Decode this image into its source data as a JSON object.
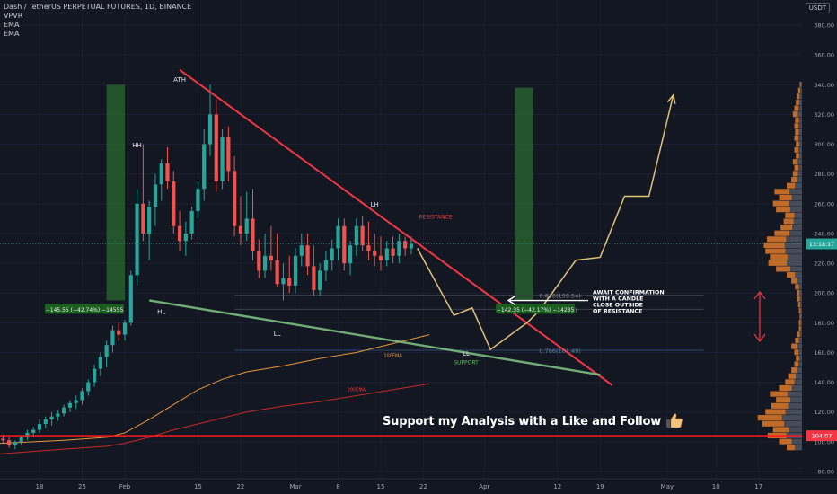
{
  "header": {
    "symbol_line": "Dash / TetherUS PERPETUAL FUTURES, 1D, BINANCE",
    "indicators": [
      "VPVR",
      "EMA",
      "EMA"
    ],
    "currency": "USDT"
  },
  "promo_text": "Support my Analysis with a Like and Follow",
  "colors": {
    "background": "#131722",
    "up_candle": "#26a69a",
    "down_candle": "#ef5350",
    "resistance": "#f23645",
    "support": "#81c784",
    "projection": "#e0c27a",
    "ema100": "#e8963c",
    "ema200": "#c62828",
    "horizontal_level": "#ff1a1a",
    "green_box": "#2e7d32"
  },
  "chart_data": {
    "type": "candlestick",
    "xlabel": "",
    "ylabel": "",
    "ylim": [
      80,
      390
    ],
    "y_ticks": [
      80,
      100,
      120,
      140,
      160,
      180,
      200,
      220,
      240,
      260,
      280,
      300,
      320,
      340,
      360,
      380
    ],
    "y_tick_labels": [
      "80.00",
      "100.00",
      "120.00",
      "140.00",
      "160.00",
      "180.00",
      "200.00",
      "220.00",
      "240.00",
      "260.00",
      "280.00",
      "300.00",
      "320.00",
      "340.00",
      "360.00",
      "380.00"
    ],
    "x_range_days": [
      -32,
      77
    ],
    "x_ticks": [
      {
        "day": -14,
        "label": "18"
      },
      {
        "day": -7,
        "label": "25"
      },
      {
        "day": 0,
        "label": "Feb"
      },
      {
        "day": 12,
        "label": "15"
      },
      {
        "day": 19,
        "label": "22"
      },
      {
        "day": 28,
        "label": "Mar"
      },
      {
        "day": 35,
        "label": "8"
      },
      {
        "day": 42,
        "label": "15"
      },
      {
        "day": 49,
        "label": "22"
      },
      {
        "day": 59,
        "label": "Apr"
      },
      {
        "day": 71,
        "label": "12"
      },
      {
        "day": 78,
        "label": "19"
      },
      {
        "day": 89,
        "label": "May"
      },
      {
        "day": 97,
        "label": "10"
      },
      {
        "day": 104,
        "label": "17"
      }
    ],
    "current_price": {
      "value": 233.0,
      "label": "13:18:17"
    },
    "level_104": {
      "value": 104.07,
      "label": "104.07"
    },
    "fib_levels": [
      {
        "value": 198.54,
        "label": "0.618(198.54)"
      },
      {
        "value": 189.02,
        "label": "0.66(189.02)"
      },
      {
        "value": 161.49,
        "label": "0.786(161.49)"
      }
    ],
    "candles": [
      [
        -32,
        122,
        124,
        119,
        121
      ],
      [
        -31,
        121,
        123,
        117,
        118
      ],
      [
        -30,
        118,
        122,
        116,
        120
      ],
      [
        -29,
        120,
        121,
        112,
        113
      ],
      [
        -28,
        113,
        116,
        110,
        114
      ],
      [
        -27,
        114,
        118,
        112,
        117
      ],
      [
        -26,
        117,
        119,
        106,
        108
      ],
      [
        -25,
        108,
        111,
        94,
        96
      ],
      [
        -24,
        96,
        103,
        94,
        101
      ],
      [
        -23,
        101,
        104,
        97,
        99
      ],
      [
        -22,
        99,
        102,
        95,
        100
      ],
      [
        -21,
        100,
        104,
        98,
        102
      ],
      [
        -20,
        102,
        105,
        99,
        101
      ],
      [
        -19,
        101,
        103,
        96,
        98
      ],
      [
        -18,
        98,
        101,
        95,
        100
      ],
      [
        -17,
        100,
        104,
        98,
        103
      ],
      [
        -16,
        103,
        108,
        101,
        106
      ],
      [
        -15,
        106,
        110,
        103,
        108
      ],
      [
        -14,
        108,
        115,
        106,
        112
      ],
      [
        -13,
        112,
        117,
        109,
        115
      ],
      [
        -12,
        115,
        120,
        111,
        117
      ],
      [
        -11,
        117,
        121,
        114,
        119
      ],
      [
        -10,
        119,
        125,
        117,
        123
      ],
      [
        -9,
        123,
        128,
        120,
        126
      ],
      [
        -8,
        126,
        131,
        122,
        128
      ],
      [
        -7,
        128,
        136,
        125,
        134
      ],
      [
        -6,
        134,
        142,
        131,
        140
      ],
      [
        -5,
        140,
        152,
        137,
        149
      ],
      [
        -4,
        149,
        160,
        144,
        157
      ],
      [
        -3,
        157,
        168,
        150,
        165
      ],
      [
        -2,
        165,
        178,
        160,
        175
      ],
      [
        -1,
        175,
        180,
        168,
        172
      ],
      [
        0,
        172,
        182,
        168,
        180
      ],
      [
        1,
        180,
        215,
        178,
        212
      ],
      [
        2,
        212,
        270,
        205,
        260
      ],
      [
        3,
        260,
        300,
        235,
        240
      ],
      [
        4,
        240,
        262,
        222,
        258
      ],
      [
        5,
        258,
        280,
        245,
        273
      ],
      [
        6,
        273,
        290,
        262,
        287
      ],
      [
        7,
        287,
        298,
        270,
        275
      ],
      [
        8,
        275,
        282,
        240,
        245
      ],
      [
        9,
        245,
        255,
        228,
        235
      ],
      [
        10,
        235,
        248,
        225,
        240
      ],
      [
        11,
        240,
        258,
        236,
        255
      ],
      [
        12,
        255,
        275,
        250,
        270
      ],
      [
        13,
        270,
        310,
        262,
        300
      ],
      [
        14,
        300,
        340,
        292,
        320
      ],
      [
        15,
        320,
        330,
        268,
        275
      ],
      [
        16,
        275,
        310,
        270,
        305
      ],
      [
        17,
        305,
        312,
        275,
        282
      ],
      [
        18,
        282,
        292,
        238,
        245
      ],
      [
        19,
        245,
        265,
        232,
        240
      ],
      [
        20,
        240,
        268,
        235,
        250
      ],
      [
        21,
        250,
        270,
        222,
        228
      ],
      [
        22,
        228,
        236,
        210,
        215
      ],
      [
        23,
        215,
        240,
        210,
        225
      ],
      [
        24,
        225,
        245,
        215,
        222
      ],
      [
        25,
        222,
        240,
        204,
        206
      ],
      [
        26,
        206,
        220,
        195,
        210
      ],
      [
        27,
        210,
        225,
        200,
        205
      ],
      [
        28,
        205,
        230,
        200,
        225
      ],
      [
        29,
        225,
        240,
        218,
        232
      ],
      [
        30,
        232,
        240,
        212,
        218
      ],
      [
        31,
        218,
        232,
        198,
        202
      ],
      [
        32,
        202,
        220,
        198,
        215
      ],
      [
        33,
        215,
        228,
        208,
        222
      ],
      [
        34,
        222,
        236,
        215,
        230
      ],
      [
        35,
        230,
        250,
        222,
        245
      ],
      [
        36,
        245,
        250,
        215,
        220
      ],
      [
        37,
        220,
        235,
        212,
        232
      ],
      [
        38,
        232,
        250,
        225,
        245
      ],
      [
        39,
        245,
        252,
        228,
        232
      ],
      [
        40,
        232,
        248,
        222,
        228
      ],
      [
        41,
        228,
        240,
        218,
        225
      ],
      [
        42,
        225,
        238,
        215,
        222
      ],
      [
        43,
        222,
        235,
        218,
        230
      ],
      [
        44,
        230,
        238,
        220,
        225
      ],
      [
        45,
        225,
        240,
        220,
        235
      ],
      [
        46,
        235,
        238,
        225,
        230
      ],
      [
        47,
        230,
        238,
        226,
        233
      ]
    ],
    "vpvr": [
      [
        96,
        20
      ],
      [
        100,
        30
      ],
      [
        104,
        45
      ],
      [
        108,
        38
      ],
      [
        112,
        52
      ],
      [
        116,
        58
      ],
      [
        120,
        48
      ],
      [
        124,
        40
      ],
      [
        128,
        34
      ],
      [
        132,
        42
      ],
      [
        136,
        30
      ],
      [
        140,
        22
      ],
      [
        144,
        18
      ],
      [
        148,
        14
      ],
      [
        152,
        10
      ],
      [
        156,
        8
      ],
      [
        160,
        10
      ],
      [
        164,
        14
      ],
      [
        168,
        9
      ],
      [
        172,
        6
      ],
      [
        176,
        4
      ],
      [
        180,
        4
      ],
      [
        184,
        3
      ],
      [
        188,
        4
      ],
      [
        192,
        5
      ],
      [
        196,
        6
      ],
      [
        200,
        7
      ],
      [
        204,
        9
      ],
      [
        208,
        14
      ],
      [
        212,
        20
      ],
      [
        216,
        34
      ],
      [
        220,
        44
      ],
      [
        224,
        42
      ],
      [
        228,
        48
      ],
      [
        232,
        50
      ],
      [
        236,
        46
      ],
      [
        240,
        36
      ],
      [
        244,
        28
      ],
      [
        248,
        24
      ],
      [
        252,
        22
      ],
      [
        256,
        34
      ],
      [
        260,
        38
      ],
      [
        264,
        30
      ],
      [
        268,
        36
      ],
      [
        272,
        20
      ],
      [
        276,
        14
      ],
      [
        280,
        12
      ],
      [
        284,
        10
      ],
      [
        288,
        12
      ],
      [
        292,
        8
      ],
      [
        296,
        10
      ],
      [
        300,
        8
      ],
      [
        304,
        10
      ],
      [
        308,
        9
      ],
      [
        312,
        10
      ],
      [
        316,
        9
      ],
      [
        320,
        12
      ],
      [
        324,
        10
      ],
      [
        328,
        8
      ],
      [
        332,
        7
      ],
      [
        336,
        5
      ],
      [
        340,
        3
      ]
    ],
    "ema100": [
      [
        -32,
        98
      ],
      [
        -20,
        99
      ],
      [
        -10,
        101
      ],
      [
        -3,
        103
      ],
      [
        0,
        106
      ],
      [
        4,
        115
      ],
      [
        8,
        125
      ],
      [
        12,
        135
      ],
      [
        16,
        142
      ],
      [
        20,
        147
      ],
      [
        26,
        151
      ],
      [
        32,
        156
      ],
      [
        38,
        160
      ],
      [
        44,
        166
      ],
      [
        50,
        172
      ]
    ],
    "ema200": [
      [
        -32,
        90
      ],
      [
        -20,
        92
      ],
      [
        -10,
        95
      ],
      [
        -3,
        97
      ],
      [
        0,
        99
      ],
      [
        4,
        103
      ],
      [
        8,
        108
      ],
      [
        12,
        112
      ],
      [
        16,
        116
      ],
      [
        20,
        120
      ],
      [
        26,
        124
      ],
      [
        32,
        127
      ],
      [
        38,
        131
      ],
      [
        44,
        135
      ],
      [
        50,
        139
      ]
    ],
    "resistance_line": [
      [
        9,
        350
      ],
      [
        80,
        138
      ]
    ],
    "support_line": [
      [
        4,
        195
      ],
      [
        78,
        145
      ]
    ],
    "projection_path": [
      [
        48,
        230
      ],
      [
        54,
        185
      ],
      [
        57,
        190
      ],
      [
        60,
        162
      ],
      [
        66,
        180
      ],
      [
        68,
        188
      ],
      [
        71,
        205
      ],
      [
        74,
        222
      ],
      [
        78,
        224
      ],
      [
        82,
        265
      ],
      [
        86,
        265
      ],
      [
        90,
        333
      ]
    ],
    "green_boxes": [
      {
        "day_from": -3,
        "day_to": 0,
        "top": 340,
        "bottom": 195
      },
      {
        "day_from": 64,
        "day_to": 67,
        "top": 338,
        "bottom": 195
      }
    ],
    "measure_labels": [
      {
        "text": "−145.55 (−42.74%) −14555",
        "day": -14,
        "value": 189
      },
      {
        "text": "−142.35 (−42.17%) −14235",
        "day": 60,
        "value": 189
      }
    ],
    "annotations": [
      {
        "text": "ATH",
        "day": 9,
        "value": 342
      },
      {
        "text": "HH",
        "day": 2,
        "value": 298
      },
      {
        "text": "HL",
        "day": 6,
        "value": 186
      },
      {
        "text": "LL",
        "day": 25,
        "value": 171
      },
      {
        "text": "LH",
        "day": 41,
        "value": 258
      },
      {
        "text": "LL",
        "day": 56,
        "value": 158
      },
      {
        "text": "RESISTANCE",
        "day": 51,
        "value": 250
      },
      {
        "text": "SUPPORT",
        "day": 56,
        "value": 152
      },
      {
        "text": "100EMA",
        "day": 44,
        "value": 157
      },
      {
        "text": "200EMA",
        "day": 38,
        "value": 134
      }
    ],
    "callout": {
      "lines": [
        "AWAIT CONFIRMATION",
        "WITH A CANDLE",
        "CLOSE OUTSIDE",
        "OF RESISTANCE"
      ],
      "day": 78,
      "value": 198
    }
  }
}
